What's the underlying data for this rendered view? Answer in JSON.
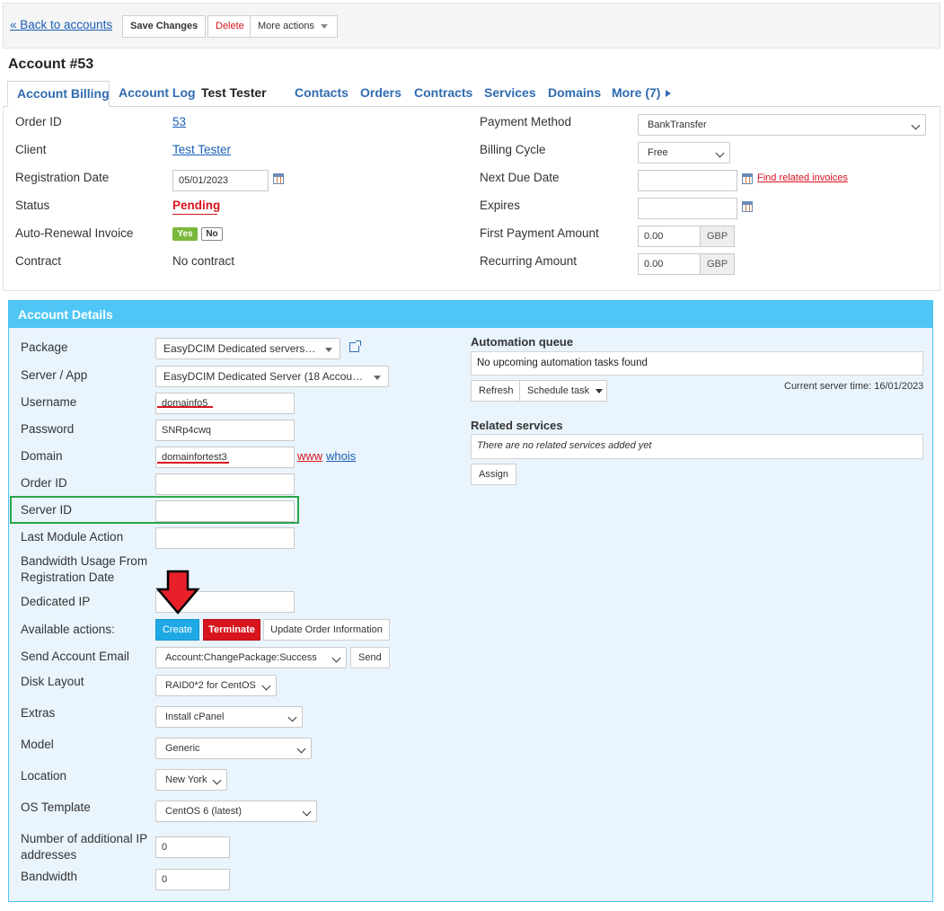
{
  "toolbar": {
    "back_label": "« Back to accounts",
    "save_label": "Save Changes",
    "delete_label": "Delete",
    "more_actions_label": "More actions"
  },
  "page_title": "Account #53",
  "tabs": {
    "billing": "Account Billing",
    "log": "Account Log",
    "client_name": "Test Tester",
    "contacts": "Contacts",
    "orders": "Orders",
    "contracts": "Contracts",
    "services": "Services",
    "domains": "Domains",
    "more": "More (7)"
  },
  "billing": {
    "order_id_label": "Order ID",
    "order_id_value": "53",
    "client_label": "Client",
    "client_value": "Test Tester",
    "reg_date_label": "Registration Date",
    "reg_date_value": "05/01/2023",
    "status_label": "Status",
    "status_value": "Pending",
    "auto_renewal_label": "Auto-Renewal Invoice",
    "yes_label": "Yes",
    "no_label": "No",
    "contract_label": "Contract",
    "contract_value": "No contract",
    "payment_method_label": "Payment Method",
    "payment_method_value": "BankTransfer",
    "billing_cycle_label": "Billing Cycle",
    "billing_cycle_value": "Free",
    "next_due_label": "Next Due Date",
    "find_invoices_label": "Find related invoices",
    "expires_label": "Expires",
    "first_payment_label": "First Payment Amount",
    "first_payment_value": "0.00",
    "recurring_label": "Recurring Amount",
    "recurring_value": "0.00",
    "currency": "GBP"
  },
  "details": {
    "title": "Account Details",
    "package_label": "Package",
    "package_value": "EasyDCIM Dedicated servers…",
    "server_label": "Server / App",
    "server_value": "EasyDCIM Dedicated Server (18 Accou…",
    "username_label": "Username",
    "username_value": "domainfo5",
    "password_label": "Password",
    "password_value": "SNRp4cwq",
    "domain_label": "Domain",
    "domain_value": "domainfortest3",
    "www_label": "www",
    "whois_label": "whois",
    "order_id_label": "Order ID",
    "server_id_label": "Server ID",
    "last_action_label": "Last Module Action",
    "bandwidth_usage_label_1": "Bandwidth Usage From",
    "bandwidth_usage_label_2": "Registration Date",
    "dedicated_ip_label": "Dedicated IP",
    "available_actions_label": "Available actions:",
    "create_label": "Create",
    "terminate_label": "Terminate",
    "update_order_label": "Update Order Information",
    "send_email_label": "Send Account Email",
    "email_template_value": "Account:ChangePackage:Success",
    "send_label": "Send",
    "disk_layout_label": "Disk Layout",
    "disk_layout_value": "RAID0*2 for CentOS",
    "extras_label": "Extras",
    "extras_value": "Install cPanel",
    "model_label": "Model",
    "model_value": "Generic",
    "location_label": "Location",
    "location_value": "New York",
    "os_label": "OS Template",
    "os_value": "CentOS 6 (latest)",
    "addl_ip_label_1": "Number of additional IP",
    "addl_ip_label_2": "addresses",
    "addl_ip_value": "0",
    "bandwidth_label": "Bandwidth",
    "bandwidth_value": "0"
  },
  "automation": {
    "title": "Automation queue",
    "empty_text": "No upcoming automation tasks found",
    "refresh_label": "Refresh",
    "schedule_label": "Schedule task",
    "server_time": "Current server time: 16/01/2023"
  },
  "related": {
    "title": "Related services",
    "empty_text": "There are no related services added yet",
    "assign_label": "Assign"
  },
  "colors": {
    "accent": "#4fc6f6",
    "link": "#1a5fb4",
    "danger": "#d8141e",
    "success": "#7ab83b",
    "highlight_box": "#2aa54a",
    "create_button": "#1ea8e6"
  }
}
